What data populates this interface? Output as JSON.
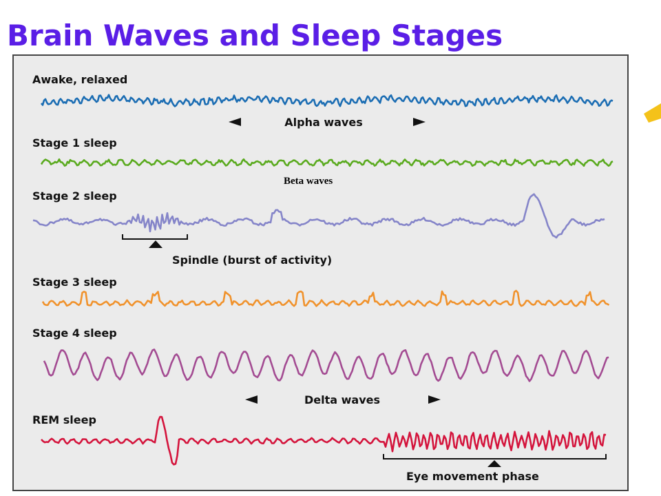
{
  "header": {
    "title": "Brain Waves and Sleep Stages"
  },
  "rows": [
    {
      "label": "Awake, relaxed"
    },
    {
      "label": "Stage 1 sleep"
    },
    {
      "label": "Stage 2 sleep"
    },
    {
      "label": "Stage 3 sleep"
    },
    {
      "label": "Stage 4 sleep"
    },
    {
      "label": "REM sleep"
    }
  ],
  "annotations": {
    "alpha": "Alpha waves",
    "beta": "Beta waves",
    "spindle": "Spindle (burst of activity)",
    "delta": "Delta waves",
    "eye": "Eye movement phase"
  }
}
